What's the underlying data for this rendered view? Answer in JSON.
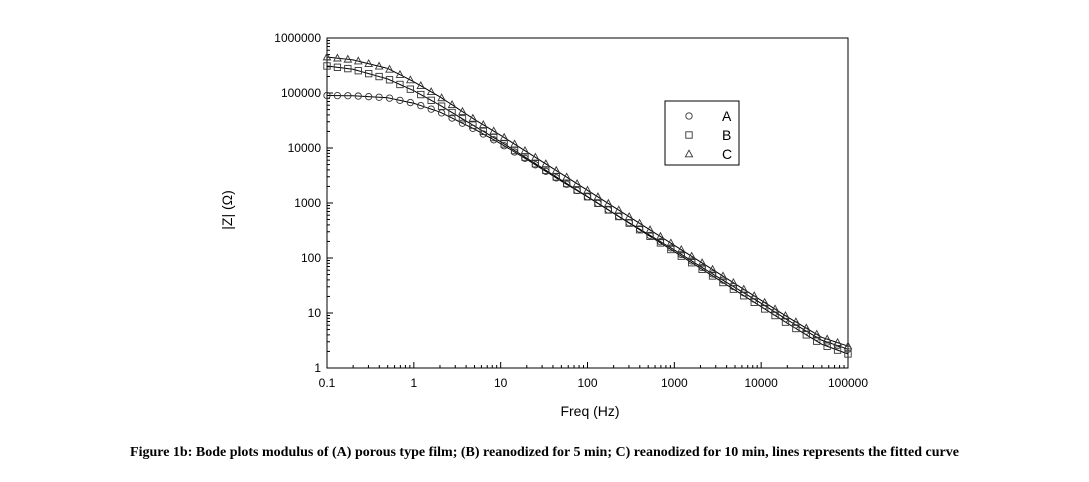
{
  "caption": "Figure 1b: Bode plots modulus of (A) porous type film; (B) reanodized for 5 min; C) reanodized for 10 min, lines represents the fitted curve",
  "chart_data": {
    "type": "scatter",
    "xscale": "log",
    "yscale": "log",
    "xlabel": "Freq (Hz)",
    "ylabel": "|Z| (Ω)",
    "xlim": [
      0.1,
      100000
    ],
    "ylim": [
      1,
      1000000
    ],
    "xticks": [
      {
        "value": 0.1,
        "label": "0.1"
      },
      {
        "value": 1,
        "label": "1"
      },
      {
        "value": 10,
        "label": "10"
      },
      {
        "value": 100,
        "label": "100"
      },
      {
        "value": 1000,
        "label": "1000"
      },
      {
        "value": 10000,
        "label": "10000"
      },
      {
        "value": 100000,
        "label": "100000"
      }
    ],
    "yticks": [
      {
        "value": 1,
        "label": "1"
      },
      {
        "value": 10,
        "label": "10"
      },
      {
        "value": 100,
        "label": "100"
      },
      {
        "value": 1000,
        "label": "1000"
      },
      {
        "value": 10000,
        "label": "10000"
      },
      {
        "value": 100000,
        "label": "100000"
      },
      {
        "value": 1000000,
        "label": "1000000"
      }
    ],
    "legend_position": "top-right",
    "fitted_lines": true,
    "series": [
      {
        "name": "A",
        "marker": "circle",
        "x": [
          0.1,
          0.2,
          0.5,
          1,
          2,
          5,
          10,
          20,
          50,
          100,
          200,
          500,
          1000,
          2000,
          5000,
          10000,
          20000,
          50000,
          100000
        ],
        "y": [
          90000,
          89000,
          82000,
          65000,
          45000,
          22000,
          12000,
          6200,
          2500,
          1300,
          650,
          270,
          140,
          70,
          29,
          15,
          7.5,
          3.2,
          2.2
        ]
      },
      {
        "name": "B",
        "marker": "square",
        "x": [
          0.1,
          0.2,
          0.5,
          1,
          2,
          5,
          10,
          20,
          50,
          100,
          200,
          500,
          1000,
          2000,
          5000,
          10000,
          20000,
          50000,
          100000
        ],
        "y": [
          310000,
          270000,
          180000,
          110000,
          60000,
          25000,
          13000,
          6500,
          2600,
          1300,
          650,
          260,
          130,
          65,
          26,
          13,
          6.5,
          2.7,
          1.8
        ]
      },
      {
        "name": "C",
        "marker": "triangle",
        "x": [
          0.1,
          0.2,
          0.5,
          1,
          2,
          5,
          10,
          20,
          50,
          100,
          200,
          500,
          1000,
          2000,
          5000,
          10000,
          20000,
          50000,
          100000
        ],
        "y": [
          450000,
          400000,
          280000,
          160000,
          85000,
          33000,
          17000,
          8500,
          3400,
          1700,
          850,
          340,
          170,
          85,
          34,
          17,
          8.5,
          3.6,
          2.5
        ]
      }
    ]
  }
}
